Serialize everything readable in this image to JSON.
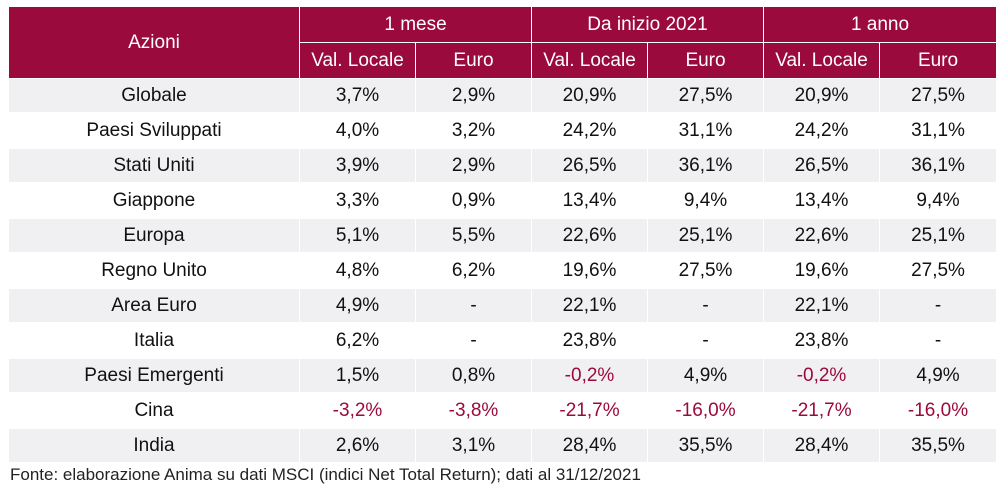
{
  "table": {
    "corner_label": "Azioni",
    "groups": [
      "1 mese",
      "Da inizio 2021",
      "1 anno"
    ],
    "subheaders": [
      "Val. Locale",
      "Euro",
      "Val. Locale",
      "Euro",
      "Val. Locale",
      "Euro"
    ],
    "rows": [
      {
        "label": "Globale",
        "values": [
          "3,7%",
          "2,9%",
          "20,9%",
          "27,5%",
          "20,9%",
          "27,5%"
        ]
      },
      {
        "label": "Paesi Sviluppati",
        "values": [
          "4,0%",
          "3,2%",
          "24,2%",
          "31,1%",
          "24,2%",
          "31,1%"
        ]
      },
      {
        "label": "Stati Uniti",
        "values": [
          "3,9%",
          "2,9%",
          "26,5%",
          "36,1%",
          "26,5%",
          "36,1%"
        ]
      },
      {
        "label": "Giappone",
        "values": [
          "3,3%",
          "0,9%",
          "13,4%",
          "9,4%",
          "13,4%",
          "9,4%"
        ]
      },
      {
        "label": "Europa",
        "values": [
          "5,1%",
          "5,5%",
          "22,6%",
          "25,1%",
          "22,6%",
          "25,1%"
        ]
      },
      {
        "label": "Regno Unito",
        "values": [
          "4,8%",
          "6,2%",
          "19,6%",
          "27,5%",
          "19,6%",
          "27,5%"
        ]
      },
      {
        "label": "Area Euro",
        "values": [
          "4,9%",
          "-",
          "22,1%",
          "-",
          "22,1%",
          "-"
        ]
      },
      {
        "label": "Italia",
        "values": [
          "6,2%",
          "-",
          "23,8%",
          "-",
          "23,8%",
          "-"
        ]
      },
      {
        "label": "Paesi Emergenti",
        "values": [
          "1,5%",
          "0,8%",
          "-0,2%",
          "4,9%",
          "-0,2%",
          "4,9%"
        ]
      },
      {
        "label": "Cina",
        "values": [
          "-3,2%",
          "-3,8%",
          "-21,7%",
          "-16,0%",
          "-21,7%",
          "-16,0%"
        ]
      },
      {
        "label": "India",
        "values": [
          "2,6%",
          "3,1%",
          "28,4%",
          "35,5%",
          "28,4%",
          "35,5%"
        ]
      }
    ]
  },
  "footer": "Fonte: elaborazione Anima su dati MSCI (indici Net Total Return); dati al 31/12/2021",
  "colors": {
    "header_bg": "#9b0a3c",
    "negative_text": "#9b0a3c",
    "stripe": "#f0f0f2"
  }
}
